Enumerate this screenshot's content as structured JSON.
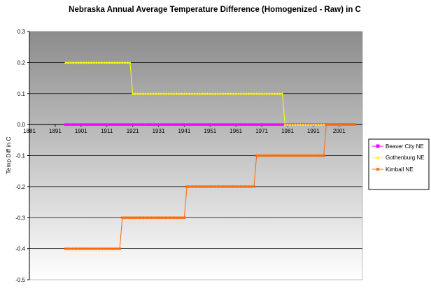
{
  "chart_data": {
    "type": "line",
    "title": "Nebraska Annual Average Temperature Difference (Homogenized - Raw) in C",
    "xlabel": "",
    "ylabel": "Temp Diff in C",
    "xlim": [
      1881,
      2010
    ],
    "ylim": [
      -0.5,
      0.3
    ],
    "x_ticks": [
      "1881",
      "1891",
      "1901",
      "1911",
      "1921",
      "1931",
      "1941",
      "1951",
      "1961",
      "1971",
      "1981",
      "1991",
      "2001"
    ],
    "y_ticks": [
      "0.3",
      "0.2",
      "0.1",
      "0.0",
      "-0.1",
      "-0.2",
      "-0.3",
      "-0.4",
      "-0.5"
    ],
    "grid": true,
    "legend_position": "right",
    "series": [
      {
        "name": "Beaver City NE",
        "color": "#ff00ff",
        "marker": "square",
        "points": [
          [
            1895,
            0.0
          ],
          [
            2007,
            0.0
          ]
        ]
      },
      {
        "name": "Gothenburg NE",
        "color": "#ffff00",
        "marker": "triangle",
        "points": [
          [
            1895,
            0.2
          ],
          [
            1920,
            0.2
          ],
          [
            1921,
            0.1
          ],
          [
            1979,
            0.1
          ],
          [
            1980,
            0.0
          ],
          [
            2007,
            0.0
          ]
        ]
      },
      {
        "name": "Kimball NE",
        "color": "#ff6600",
        "marker": "star",
        "points": [
          [
            1895,
            -0.4
          ],
          [
            1916,
            -0.4
          ],
          [
            1917,
            -0.3
          ],
          [
            1941,
            -0.3
          ],
          [
            1942,
            -0.2
          ],
          [
            1968,
            -0.2
          ],
          [
            1969,
            -0.1
          ],
          [
            1995,
            -0.1
          ],
          [
            1996,
            0.0
          ],
          [
            2007,
            0.0
          ]
        ]
      }
    ]
  }
}
